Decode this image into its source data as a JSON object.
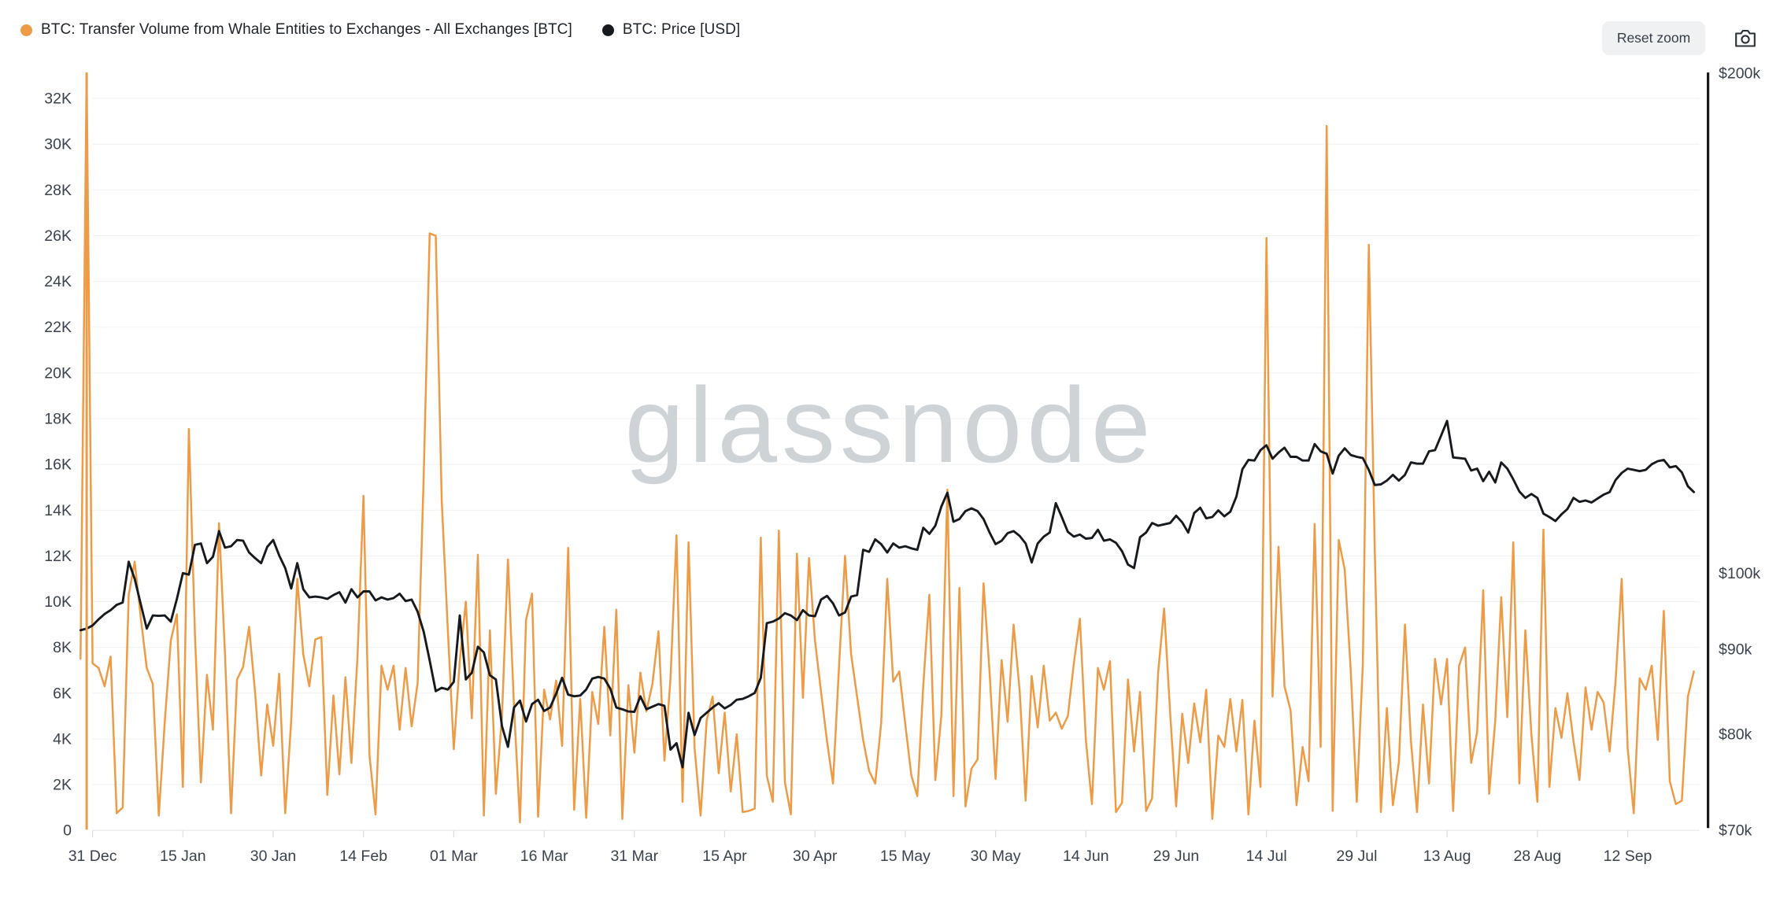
{
  "legend": {
    "items": [
      {
        "label": "BTC: Transfer Volume from Whale Entities to Exchanges - All Exchanges [BTC]",
        "color": "#ED9B46"
      },
      {
        "label": "BTC: Price [USD]",
        "color": "#16191D"
      }
    ]
  },
  "toolbar": {
    "reset_zoom_label": "Reset zoom",
    "camera_icon": "camera"
  },
  "watermark": "glassnode",
  "chart_data": {
    "type": "line",
    "title": "",
    "x_label": "",
    "x": [
      "2024-12-29",
      "2024-12-30",
      "2024-12-31",
      "2025-01-01",
      "2025-01-02",
      "2025-01-03",
      "2025-01-04",
      "2025-01-05",
      "2025-01-06",
      "2025-01-07",
      "2025-01-08",
      "2025-01-09",
      "2025-01-10",
      "2025-01-11",
      "2025-01-12",
      "2025-01-13",
      "2025-01-14",
      "2025-01-15",
      "2025-01-16",
      "2025-01-17",
      "2025-01-18",
      "2025-01-19",
      "2025-01-20",
      "2025-01-21",
      "2025-01-22",
      "2025-01-23",
      "2025-01-24",
      "2025-01-25",
      "2025-01-26",
      "2025-01-27",
      "2025-01-28",
      "2025-01-29",
      "2025-01-30",
      "2025-01-31",
      "2025-02-01",
      "2025-02-02",
      "2025-02-03",
      "2025-02-04",
      "2025-02-05",
      "2025-02-06",
      "2025-02-07",
      "2025-02-08",
      "2025-02-09",
      "2025-02-10",
      "2025-02-11",
      "2025-02-12",
      "2025-02-13",
      "2025-02-14",
      "2025-02-15",
      "2025-02-16",
      "2025-02-17",
      "2025-02-18",
      "2025-02-19",
      "2025-02-20",
      "2025-02-21",
      "2025-02-22",
      "2025-02-23",
      "2025-02-24",
      "2025-02-25",
      "2025-02-26",
      "2025-02-27",
      "2025-02-28",
      "2025-03-01",
      "2025-03-02",
      "2025-03-03",
      "2025-03-04",
      "2025-03-05",
      "2025-03-06",
      "2025-03-07",
      "2025-03-08",
      "2025-03-09",
      "2025-03-10",
      "2025-03-11",
      "2025-03-12",
      "2025-03-13",
      "2025-03-14",
      "2025-03-15",
      "2025-03-16",
      "2025-03-17",
      "2025-03-18",
      "2025-03-19",
      "2025-03-20",
      "2025-03-21",
      "2025-03-22",
      "2025-03-23",
      "2025-03-24",
      "2025-03-25",
      "2025-03-26",
      "2025-03-27",
      "2025-03-28",
      "2025-03-29",
      "2025-03-30",
      "2025-03-31",
      "2025-04-01",
      "2025-04-02",
      "2025-04-03",
      "2025-04-04",
      "2025-04-05",
      "2025-04-06",
      "2025-04-07",
      "2025-04-08",
      "2025-04-09",
      "2025-04-10",
      "2025-04-11",
      "2025-04-12",
      "2025-04-13",
      "2025-04-14",
      "2025-04-15",
      "2025-04-16",
      "2025-04-17",
      "2025-04-18",
      "2025-04-19",
      "2025-04-20",
      "2025-04-21",
      "2025-04-22",
      "2025-04-23",
      "2025-04-24",
      "2025-04-25",
      "2025-04-26",
      "2025-04-27",
      "2025-04-28",
      "2025-04-29",
      "2025-04-30",
      "2025-05-01",
      "2025-05-02",
      "2025-05-03",
      "2025-05-04",
      "2025-05-05",
      "2025-05-06",
      "2025-05-07",
      "2025-05-08",
      "2025-05-09",
      "2025-05-10",
      "2025-05-11",
      "2025-05-12",
      "2025-05-13",
      "2025-05-14",
      "2025-05-15",
      "2025-05-16",
      "2025-05-17",
      "2025-05-18",
      "2025-05-19",
      "2025-05-20",
      "2025-05-21",
      "2025-05-22",
      "2025-05-23",
      "2025-05-24",
      "2025-05-25",
      "2025-05-26",
      "2025-05-27",
      "2025-05-28",
      "2025-05-29",
      "2025-05-30",
      "2025-05-31",
      "2025-06-01",
      "2025-06-02",
      "2025-06-03",
      "2025-06-04",
      "2025-06-05",
      "2025-06-06",
      "2025-06-07",
      "2025-06-08",
      "2025-06-09",
      "2025-06-10",
      "2025-06-11",
      "2025-06-12",
      "2025-06-13",
      "2025-06-14",
      "2025-06-15",
      "2025-06-16",
      "2025-06-17",
      "2025-06-18",
      "2025-06-19",
      "2025-06-20",
      "2025-06-21",
      "2025-06-22",
      "2025-06-23",
      "2025-06-24",
      "2025-06-25",
      "2025-06-26",
      "2025-06-27",
      "2025-06-28",
      "2025-06-29",
      "2025-06-30",
      "2025-07-01",
      "2025-07-02",
      "2025-07-03",
      "2025-07-04",
      "2025-07-05",
      "2025-07-06",
      "2025-07-07",
      "2025-07-08",
      "2025-07-09",
      "2025-07-10",
      "2025-07-11",
      "2025-07-12",
      "2025-07-13",
      "2025-07-14",
      "2025-07-15",
      "2025-07-16",
      "2025-07-17",
      "2025-07-18",
      "2025-07-19",
      "2025-07-20",
      "2025-07-21",
      "2025-07-22",
      "2025-07-23",
      "2025-07-24",
      "2025-07-25",
      "2025-07-26",
      "2025-07-27",
      "2025-07-28",
      "2025-07-29",
      "2025-07-30",
      "2025-07-31",
      "2025-08-01",
      "2025-08-02",
      "2025-08-03",
      "2025-08-04",
      "2025-08-05",
      "2025-08-06",
      "2025-08-07",
      "2025-08-08",
      "2025-08-09",
      "2025-08-10",
      "2025-08-11",
      "2025-08-12",
      "2025-08-13",
      "2025-08-14",
      "2025-08-15",
      "2025-08-16",
      "2025-08-17",
      "2025-08-18",
      "2025-08-19",
      "2025-08-20",
      "2025-08-21",
      "2025-08-22",
      "2025-08-23",
      "2025-08-24",
      "2025-08-25",
      "2025-08-26",
      "2025-08-27",
      "2025-08-28",
      "2025-08-29",
      "2025-08-30",
      "2025-08-31",
      "2025-09-01",
      "2025-09-02",
      "2025-09-03",
      "2025-09-04",
      "2025-09-05",
      "2025-09-06",
      "2025-09-07",
      "2025-09-08",
      "2025-09-09",
      "2025-09-10",
      "2025-09-11",
      "2025-09-12",
      "2025-09-13",
      "2025-09-14",
      "2025-09-15",
      "2025-09-16",
      "2025-09-17",
      "2025-09-18",
      "2025-09-19",
      "2025-09-20",
      "2025-09-21",
      "2025-09-22",
      "2025-09-23"
    ],
    "x_axis": {
      "tick_labels": [
        "31 Dec",
        "15 Jan",
        "30 Jan",
        "14 Feb",
        "01 Mar",
        "16 Mar",
        "31 Mar",
        "15 Apr",
        "30 Apr",
        "15 May",
        "30 May",
        "14 Jun",
        "29 Jun",
        "14 Jul",
        "29 Jul",
        "13 Aug",
        "28 Aug",
        "12 Sep"
      ],
      "tick_dates": [
        "2024-12-31",
        "2025-01-15",
        "2025-01-30",
        "2025-02-14",
        "2025-03-01",
        "2025-03-16",
        "2025-03-31",
        "2025-04-15",
        "2025-04-30",
        "2025-05-15",
        "2025-05-30",
        "2025-06-14",
        "2025-06-29",
        "2025-07-14",
        "2025-07-29",
        "2025-08-13",
        "2025-08-28",
        "2025-09-12"
      ]
    },
    "left_axis": {
      "title": "",
      "tick_labels": [
        "0",
        "2K",
        "4K",
        "6K",
        "8K",
        "10K",
        "12K",
        "14K",
        "16K",
        "18K",
        "20K",
        "22K",
        "24K",
        "26K",
        "28K",
        "30K",
        "32K"
      ],
      "tick_values": [
        0,
        2000,
        4000,
        6000,
        8000,
        10000,
        12000,
        14000,
        16000,
        18000,
        20000,
        22000,
        24000,
        26000,
        28000,
        30000,
        32000
      ],
      "range": [
        0,
        33100
      ],
      "grid": true
    },
    "right_axis": {
      "title": "",
      "scale": "log",
      "tick_labels": [
        "$70k",
        "$80k",
        "$90k",
        "$100k",
        "$200k"
      ],
      "tick_values": [
        70000,
        80000,
        90000,
        100000,
        200000
      ],
      "range": [
        70000,
        200000
      ]
    },
    "series": [
      {
        "name": "BTC: Transfer Volume from Whale Entities to Exchanges - All Exchanges [BTC]",
        "color": "#ED9B46",
        "axis": "left",
        "unit": "BTC",
        "values": [
          7500,
          33050,
          7300,
          7100,
          6300,
          7600,
          750,
          1000,
          10300,
          11750,
          9300,
          7100,
          6400,
          650,
          4800,
          8300,
          9450,
          1900,
          17550,
          8600,
          2100,
          6800,
          4400,
          13430,
          7700,
          750,
          6600,
          7150,
          8900,
          6000,
          2400,
          5500,
          3700,
          6850,
          750,
          4800,
          11000,
          7700,
          6300,
          8350,
          8450,
          1550,
          5900,
          2450,
          6700,
          2950,
          7600,
          14630,
          3300,
          700,
          7200,
          6150,
          7200,
          4400,
          7100,
          4550,
          6450,
          15500,
          26100,
          26000,
          14400,
          8800,
          3550,
          7400,
          10000,
          4900,
          12050,
          650,
          8750,
          1600,
          4950,
          11850,
          5400,
          350,
          9200,
          10350,
          600,
          6150,
          4850,
          6550,
          3700,
          12350,
          900,
          5750,
          550,
          6050,
          4650,
          8900,
          4150,
          9650,
          500,
          6350,
          3400,
          6900,
          5200,
          6400,
          8700,
          3050,
          6650,
          12900,
          1250,
          12600,
          3600,
          650,
          4800,
          5850,
          2500,
          5150,
          1700,
          4200,
          800,
          850,
          950,
          12800,
          2400,
          1250,
          13100,
          2100,
          700,
          12100,
          5800,
          11900,
          8300,
          6050,
          3900,
          2050,
          7200,
          12000,
          7700,
          5850,
          3950,
          2600,
          2050,
          4700,
          11000,
          6500,
          6950,
          4650,
          2400,
          1500,
          6350,
          10300,
          2200,
          5050,
          14900,
          1500,
          10600,
          1050,
          2700,
          3100,
          10800,
          6900,
          2250,
          7450,
          4750,
          9000,
          6100,
          1300,
          6750,
          4500,
          7200,
          4800,
          5150,
          4450,
          5000,
          7300,
          9250,
          3950,
          1150,
          7100,
          6150,
          7400,
          800,
          1200,
          6600,
          3450,
          6050,
          850,
          1400,
          6900,
          9700,
          5100,
          1050,
          5100,
          2950,
          5550,
          3850,
          6150,
          500,
          4150,
          3650,
          5750,
          3450,
          5700,
          700,
          4800,
          1900,
          25900,
          5850,
          12400,
          6300,
          5250,
          1100,
          3650,
          2150,
          13400,
          3650,
          30800,
          850,
          12700,
          11400,
          6950,
          1250,
          7250,
          25600,
          12200,
          800,
          5350,
          1100,
          3000,
          9000,
          3900,
          800,
          5500,
          2050,
          7500,
          5500,
          7500,
          850,
          7200,
          8000,
          2950,
          4300,
          10500,
          1600,
          4800,
          10200,
          4950,
          12600,
          2050,
          8750,
          4200,
          1250,
          13150,
          1900,
          5350,
          4050,
          6000,
          3900,
          2200,
          6250,
          4400,
          6050,
          5600,
          3450,
          6550,
          11000,
          3600,
          750,
          6650,
          6150,
          7200,
          3950,
          9600,
          2150,
          1150,
          1300,
          5850,
          6950
        ]
      },
      {
        "name": "BTC: Price [USD]",
        "color": "#16191D",
        "axis": "right",
        "unit": "USD",
        "values": [
          92400,
          92600,
          93000,
          93800,
          94500,
          95000,
          95700,
          96000,
          101600,
          99200,
          95800,
          92600,
          94300,
          94250,
          94300,
          93500,
          96500,
          100000,
          99800,
          104000,
          104200,
          101400,
          102300,
          106000,
          103600,
          103800,
          104700,
          104600,
          102900,
          102100,
          101400,
          103700,
          104700,
          102500,
          100700,
          97900,
          101400,
          97800,
          96700,
          96800,
          96700,
          96500,
          97000,
          97400,
          96000,
          97800,
          96700,
          97500,
          97500,
          96300,
          96700,
          96400,
          96600,
          97200,
          96200,
          96400,
          94800,
          92200,
          88600,
          84900,
          85300,
          85100,
          86000,
          94300,
          86300,
          87100,
          90300,
          89600,
          86800,
          86300,
          80900,
          78600,
          83000,
          83800,
          81400,
          83400,
          83900,
          82600,
          83000,
          84600,
          86500,
          84500,
          84300,
          84400,
          85100,
          86400,
          86600,
          86400,
          85200,
          83000,
          82800,
          82550,
          82500,
          84300,
          82800,
          83100,
          83400,
          83200,
          78300,
          79000,
          76400,
          82400,
          79900,
          81800,
          82400,
          83000,
          83500,
          82900,
          83300,
          83900,
          84000,
          84300,
          84700,
          86500,
          93300,
          93500,
          93900,
          94600,
          94300,
          93700,
          95000,
          94300,
          94200,
          96400,
          96900,
          95900,
          94300,
          94700,
          96800,
          97000,
          103300,
          103000,
          104800,
          104100,
          102900,
          104200,
          103600,
          103800,
          103500,
          103300,
          106500,
          105600,
          106800,
          109700,
          111800,
          107400,
          107800,
          109000,
          109400,
          109000,
          107800,
          105800,
          104100,
          104600,
          105700,
          106000,
          105300,
          104200,
          101500,
          104200,
          105200,
          105800,
          110200,
          108100,
          105900,
          105200,
          105500,
          104900,
          105000,
          106200,
          104600,
          104800,
          104300,
          103100,
          101200,
          100700,
          105100,
          105800,
          107200,
          106800,
          107000,
          107200,
          108300,
          107300,
          105800,
          108700,
          109500,
          107900,
          108100,
          109100,
          108200,
          108900,
          111200,
          115500,
          117000,
          116900,
          118600,
          119400,
          117200,
          118200,
          119000,
          117500,
          117500,
          116900,
          116900,
          119600,
          118400,
          118000,
          114800,
          117700,
          118900,
          117800,
          117500,
          117300,
          115400,
          113000,
          113100,
          113700,
          114600,
          113700,
          114600,
          116600,
          116400,
          116400,
          118400,
          118600,
          121000,
          123500,
          117400,
          117300,
          117200,
          115300,
          115600,
          113600,
          115100,
          113400,
          116600,
          115600,
          113900,
          112000,
          111000,
          111600,
          111000,
          108600,
          108100,
          107500,
          108500,
          109300,
          111000,
          110400,
          110600,
          110300,
          110900,
          111500,
          111900,
          113800,
          114900,
          115600,
          115400,
          115200,
          115400,
          116300,
          116800,
          117000,
          115800,
          116000,
          115000,
          112800,
          111900
        ]
      }
    ]
  }
}
